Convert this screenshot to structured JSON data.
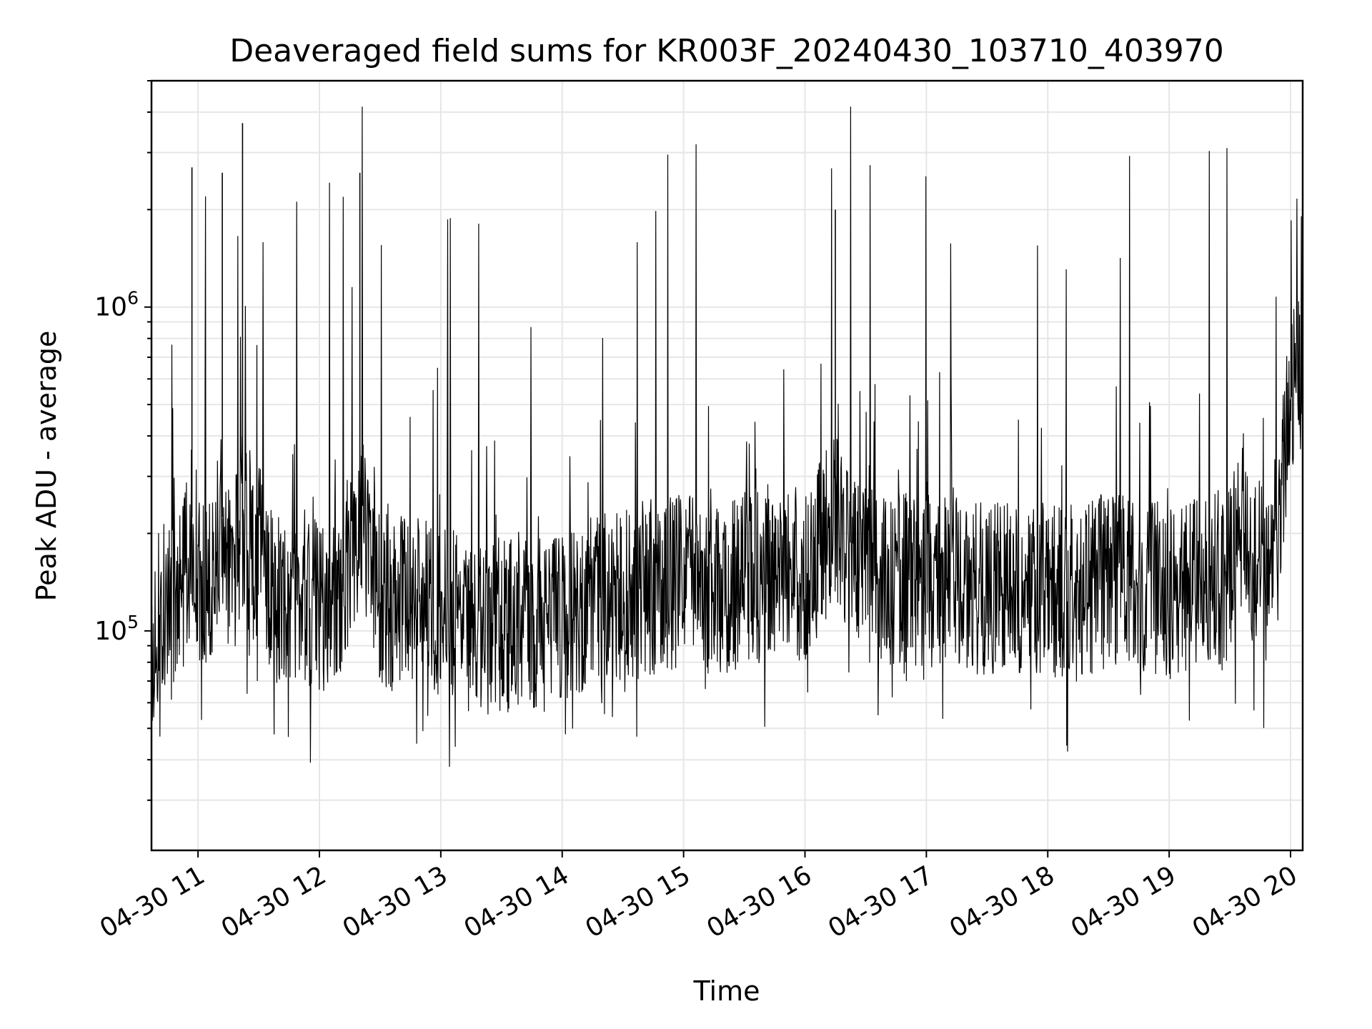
{
  "chart_data": {
    "type": "line",
    "title": "Deaveraged field sums for KR003F_20240430_103710_403970",
    "xlabel": "Time",
    "ylabel": "Peak ADU - average",
    "yscale": "log",
    "ylim": [
      21000,
      5000000
    ],
    "xlim": [
      "2024-04-30 10:37",
      "2024-04-30 20:06"
    ],
    "grid": true,
    "line_color": "#000000",
    "grid_color": "#e6e6e6",
    "x_ticks": [
      "04-30 11",
      "04-30 12",
      "04-30 13",
      "04-30 14",
      "04-30 15",
      "04-30 16",
      "04-30 17",
      "04-30 18",
      "04-30 19",
      "04-30 20"
    ],
    "y_ticks": [
      {
        "base": "10",
        "exp": "5"
      },
      {
        "base": "10",
        "exp": "6"
      }
    ],
    "series": [
      {
        "x": [
          "2024-04-30 10:37",
          "2024-04-30 10:43",
          "2024-04-30 10:47",
          "2024-04-30 10:52",
          "2024-04-30 10:57",
          "2024-04-30 11:02",
          "2024-04-30 11:07",
          "2024-04-30 11:12",
          "2024-04-30 11:17",
          "2024-04-30 11:22",
          "2024-04-30 11:27",
          "2024-04-30 11:32",
          "2024-04-30 11:37",
          "2024-04-30 11:42",
          "2024-04-30 11:47",
          "2024-04-30 11:52",
          "2024-04-30 12:00",
          "2024-04-30 12:10",
          "2024-04-30 12:20",
          "2024-04-30 12:30",
          "2024-04-30 12:40",
          "2024-04-30 12:50",
          "2024-04-30 13:00",
          "2024-04-30 13:10",
          "2024-04-30 13:20",
          "2024-04-30 13:30",
          "2024-04-30 13:40",
          "2024-04-30 13:50",
          "2024-04-30 14:00",
          "2024-04-30 14:10",
          "2024-04-30 14:20",
          "2024-04-30 14:30",
          "2024-04-30 14:40",
          "2024-04-30 14:50",
          "2024-04-30 15:00",
          "2024-04-30 15:15",
          "2024-04-30 15:30",
          "2024-04-30 15:45",
          "2024-04-30 16:00",
          "2024-04-30 16:15",
          "2024-04-30 16:30",
          "2024-04-30 16:45",
          "2024-04-30 17:00",
          "2024-04-30 17:15",
          "2024-04-30 17:30",
          "2024-04-30 17:45",
          "2024-04-30 18:00",
          "2024-04-30 18:15",
          "2024-04-30 18:30",
          "2024-04-30 18:45",
          "2024-04-30 19:00",
          "2024-04-30 19:15",
          "2024-04-30 19:30",
          "2024-04-30 19:36",
          "2024-04-30 19:42",
          "2024-04-30 19:48",
          "2024-04-30 19:54",
          "2024-04-30 20:00",
          "2024-04-30 20:06"
        ],
        "y": [
          95000,
          120000,
          115000,
          125000,
          2700000,
          130000,
          145000,
          2600000,
          140000,
          3700000,
          160000,
          185000,
          130000,
          120000,
          135000,
          130000,
          115000,
          140000,
          2600000,
          125000,
          120000,
          130000,
          115000,
          110000,
          100000,
          105000,
          110000,
          105000,
          112000,
          118000,
          125000,
          130000,
          135000,
          140000,
          140000,
          135000,
          145000,
          155000,
          150000,
          2000000,
          150000,
          145000,
          140000,
          150000,
          135000,
          130000,
          135000,
          130000,
          145000,
          140000,
          130000,
          145000,
          150000,
          230000,
          160000,
          150000,
          200000,
          550000,
          600000
        ],
        "note_peaks": [
          200000,
          4000000
        ]
      }
    ]
  }
}
